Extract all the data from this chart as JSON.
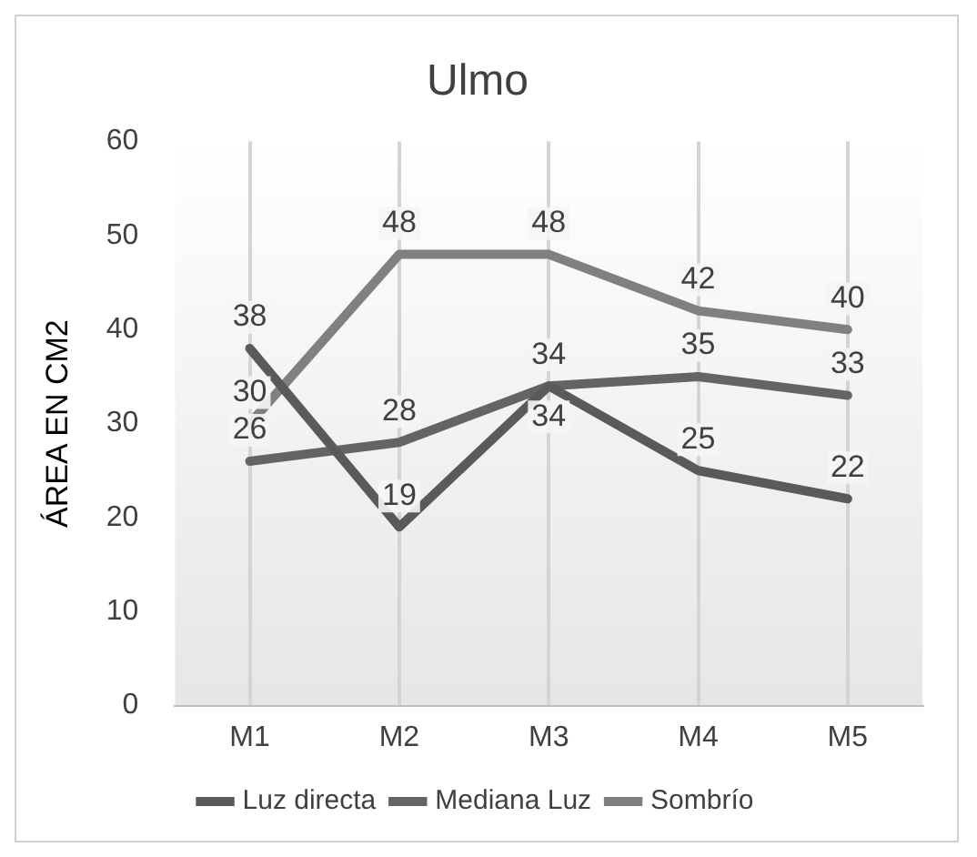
{
  "chart_data": {
    "type": "line",
    "title": "Ulmo",
    "ylabel": "ÁREA EN CM2",
    "categories": [
      "M1",
      "M2",
      "M3",
      "M4",
      "M5"
    ],
    "series": [
      {
        "name": "Luz directa",
        "color": "#5a5a5a",
        "values": [
          38,
          19,
          34,
          25,
          22
        ]
      },
      {
        "name": "Mediana Luz",
        "color": "#646464",
        "values": [
          26,
          28,
          34,
          35,
          33
        ]
      },
      {
        "name": "Sombrío",
        "color": "#808080",
        "values": [
          30,
          48,
          48,
          42,
          40
        ]
      }
    ],
    "ylim": [
      0,
      60
    ],
    "yticks": [
      0,
      10,
      20,
      30,
      40,
      50,
      60
    ],
    "grid": "x",
    "legend": "bottom",
    "marker": "none",
    "line_style": "solid",
    "data_labels": true
  }
}
